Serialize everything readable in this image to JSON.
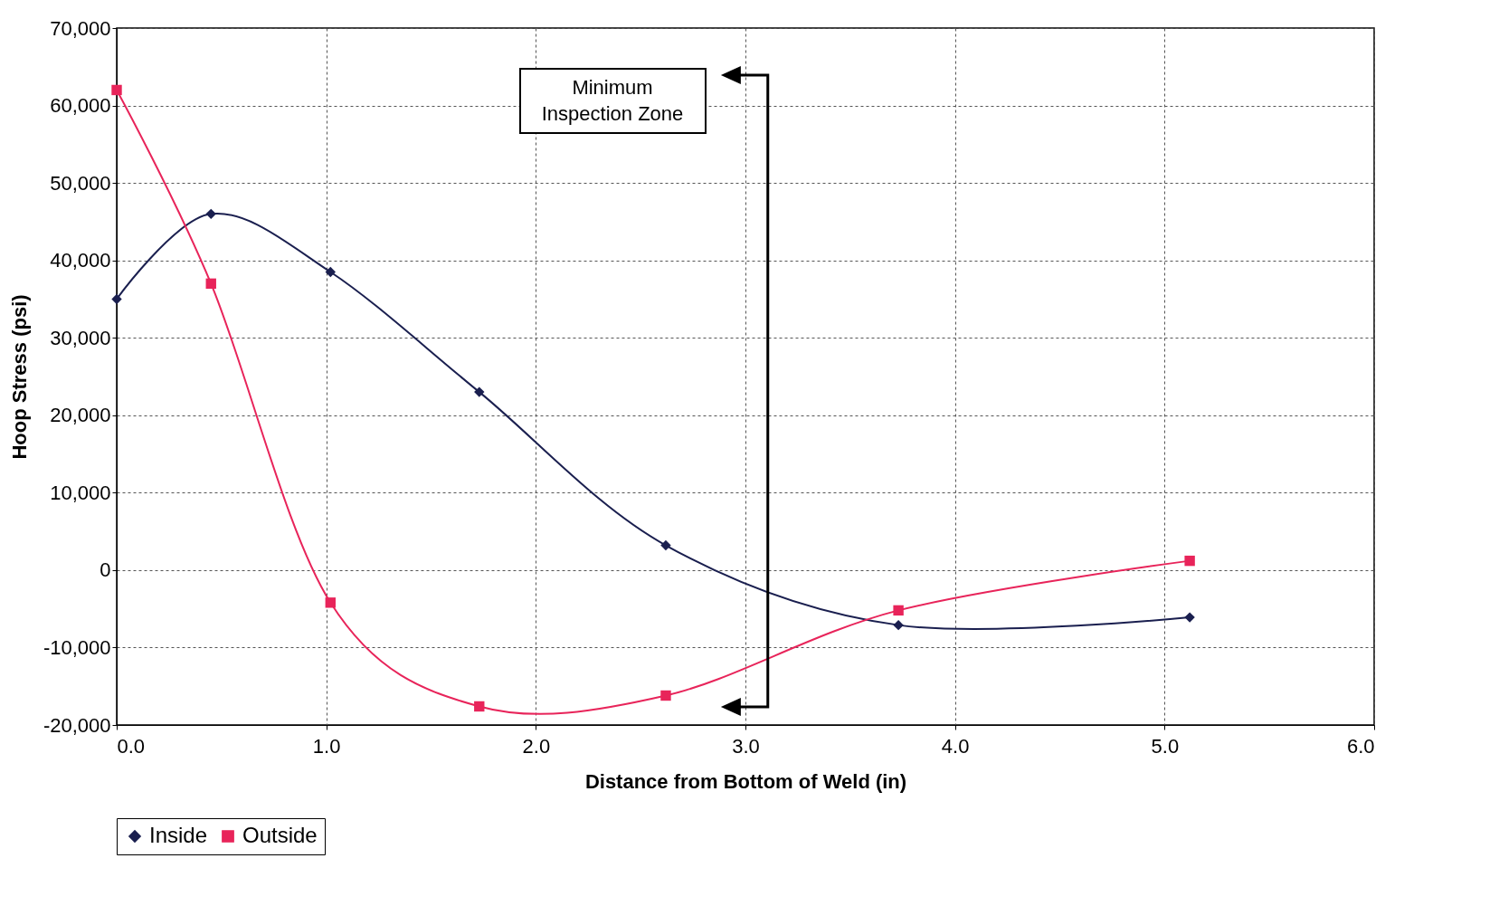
{
  "chart_data": {
    "type": "line",
    "xlabel": "Distance from Bottom of Weld (in)",
    "ylabel": "Hoop Stress (psi)",
    "xlim": [
      0,
      6
    ],
    "xticks": [
      {
        "value": 0,
        "label": "0.0"
      },
      {
        "value": 1,
        "label": "1.0"
      },
      {
        "value": 2,
        "label": "2.0"
      },
      {
        "value": 3,
        "label": "3.0"
      },
      {
        "value": 4,
        "label": "4.0"
      },
      {
        "value": 5,
        "label": "5.0"
      },
      {
        "value": 6,
        "label": "6.0"
      }
    ],
    "ylim": [
      -20000,
      70000
    ],
    "yticks": [
      {
        "value": -20000,
        "label": "-20,000"
      },
      {
        "value": -10000,
        "label": "-10,000"
      },
      0,
      {
        "value": 10000,
        "label": "10,000"
      },
      {
        "value": 20000,
        "label": "20,000"
      },
      {
        "value": 30000,
        "label": "30,000"
      },
      {
        "value": 40000,
        "label": "40,000"
      },
      {
        "value": 50000,
        "label": "50,000"
      },
      {
        "value": 60000,
        "label": "60,000"
      },
      {
        "value": 70000,
        "label": "70,000"
      }
    ],
    "grid": true,
    "legend": "bottom",
    "line_style": "solid",
    "annotations": [
      "Minimum Inspection Zone"
    ],
    "series": [
      {
        "name": "Inside",
        "color": "#1a1f4f",
        "marker": "diamond",
        "x": [
          0,
          0.45,
          1.02,
          1.73,
          2.62,
          3.73,
          5.12
        ],
        "values": [
          35000,
          46000,
          38500,
          23000,
          3200,
          -7100,
          -6100
        ]
      },
      {
        "name": "Outside",
        "color": "#e8245a",
        "marker": "square",
        "x": [
          0,
          0.45,
          1.02,
          1.73,
          2.62,
          3.73,
          5.12
        ],
        "values": [
          62000,
          37000,
          -4200,
          -17600,
          -16200,
          -5200,
          1200
        ]
      }
    ]
  }
}
